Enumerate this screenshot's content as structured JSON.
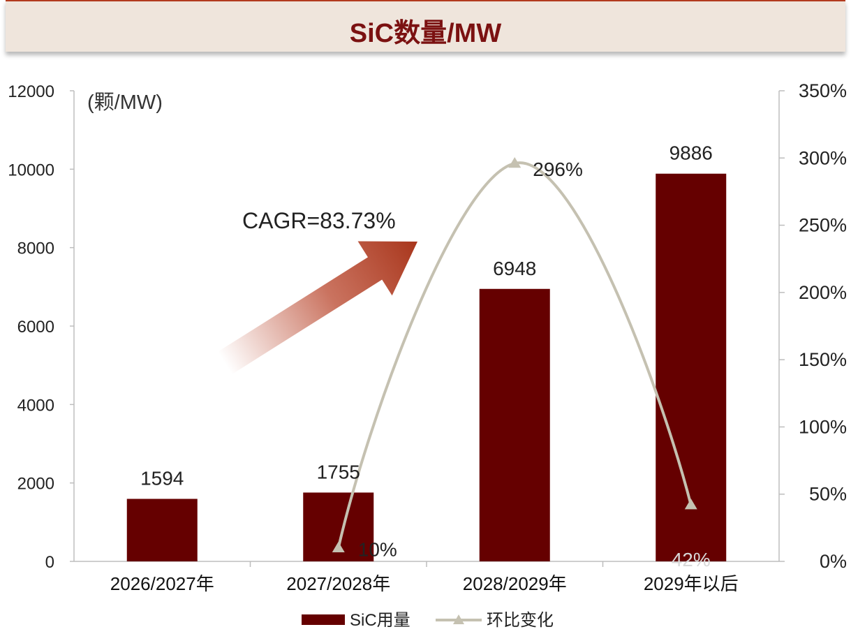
{
  "title": "SiC数量/MW",
  "chart_data": {
    "type": "bar",
    "categories": [
      "2026/2027年",
      "2027/2028年",
      "2028/2029年",
      "2029年以后"
    ],
    "y_unit_label": "(颗/MW)",
    "ylim": [
      0,
      12000
    ],
    "y_ticks": [
      "0",
      "2000",
      "4000",
      "6000",
      "8000",
      "10000",
      "12000"
    ],
    "y2lim": [
      0,
      350
    ],
    "y2_ticks": [
      "0%",
      "50%",
      "100%",
      "150%",
      "200%",
      "250%",
      "300%",
      "350%"
    ],
    "series": [
      {
        "name": "SiC用量",
        "kind": "bar",
        "axis": "left",
        "values": [
          1594,
          1755,
          6948,
          9886
        ],
        "labels": [
          "1594",
          "1755",
          "6948",
          "9886"
        ]
      },
      {
        "name": "环比变化",
        "kind": "line",
        "axis": "right",
        "values": [
          null,
          10,
          296,
          42
        ],
        "labels": [
          "",
          "10%",
          "296%",
          "42%"
        ]
      }
    ],
    "annotation": "CAGR=83.73%",
    "colors": {
      "bar": "#650000",
      "line": "#c5c1b1",
      "title": "#7b1111",
      "arrow": "#b8442a"
    },
    "grid": false,
    "legend": "bottom"
  }
}
